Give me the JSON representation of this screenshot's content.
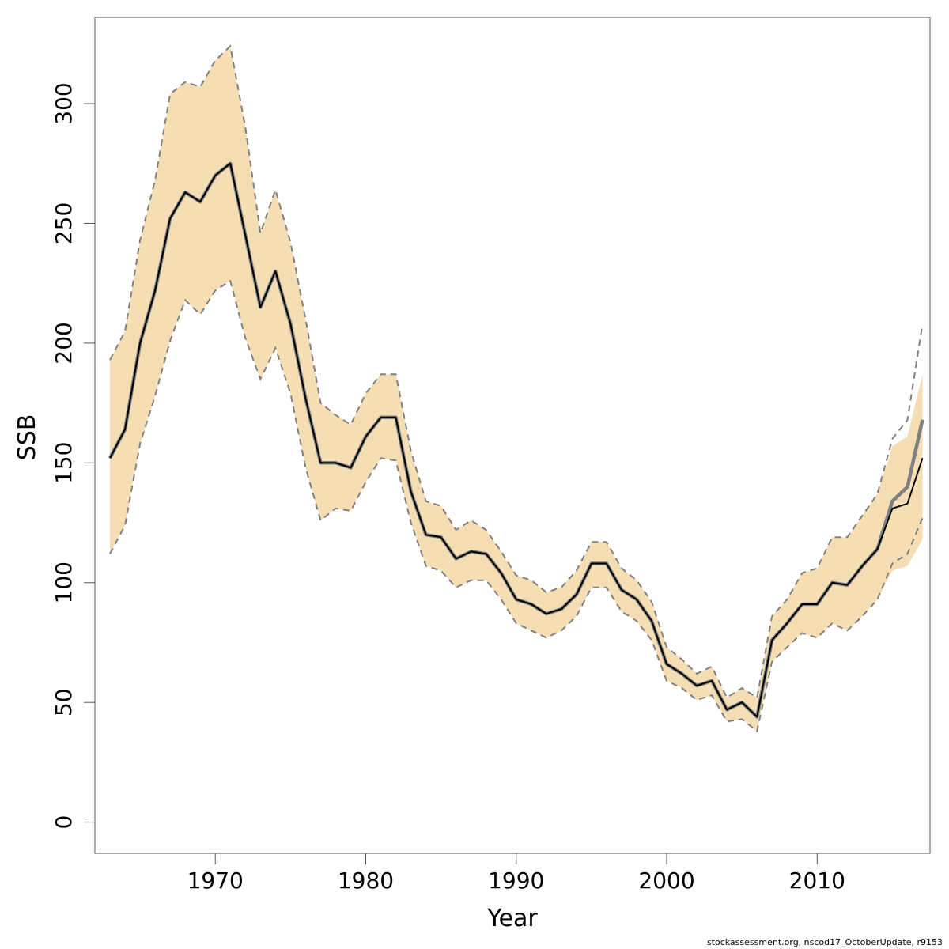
{
  "chart_data": {
    "type": "line",
    "xlabel": "Year",
    "ylabel": "SSB",
    "xlim": [
      1962,
      2017.5
    ],
    "ylim": [
      -13,
      336
    ],
    "x_ticks": [
      1970,
      1980,
      1990,
      2000,
      2010
    ],
    "y_ticks": [
      0,
      50,
      100,
      150,
      200,
      250,
      300
    ],
    "grid": false,
    "legend": "none",
    "colors": {
      "band": "#f5deb3",
      "estimate": "#000000",
      "retro": "#808080",
      "bounds": "#808080",
      "frame": "#555555"
    },
    "x": [
      1963,
      1964,
      1965,
      1966,
      1967,
      1968,
      1969,
      1970,
      1971,
      1972,
      1973,
      1974,
      1975,
      1976,
      1977,
      1978,
      1979,
      1980,
      1981,
      1982,
      1983,
      1984,
      1985,
      1986,
      1987,
      1988,
      1989,
      1990,
      1991,
      1992,
      1993,
      1994,
      1995,
      1996,
      1997,
      1998,
      1999,
      2000,
      2001,
      2002,
      2003,
      2004,
      2005,
      2006,
      2007,
      2008,
      2009,
      2010,
      2011,
      2012,
      2013,
      2014,
      2015,
      2016,
      2017
    ],
    "series": [
      {
        "role": "estimate",
        "values": [
          152,
          164,
          200,
          222,
          252,
          263,
          259,
          270,
          275,
          245,
          215,
          230,
          208,
          177,
          150,
          150,
          148,
          161,
          169,
          169,
          138,
          120,
          119,
          110,
          113,
          112,
          104,
          93,
          91,
          87,
          89,
          95,
          108,
          108,
          97,
          93,
          84,
          66,
          62,
          57,
          59,
          47,
          50,
          44,
          76,
          83,
          91,
          91,
          100,
          99,
          107,
          114,
          131,
          133,
          152
        ]
      },
      {
        "role": "retro",
        "values": [
          152,
          164,
          200,
          222,
          252,
          263,
          259,
          270,
          275,
          245,
          215,
          230,
          208,
          177,
          150,
          150,
          148,
          161,
          169,
          169,
          138,
          120,
          119,
          110,
          113,
          112,
          104,
          93,
          91,
          87,
          89,
          95,
          108,
          108,
          97,
          93,
          84,
          66,
          62,
          57,
          59,
          47,
          50,
          44,
          76,
          83,
          91,
          91,
          100,
          99,
          107,
          114,
          134,
          140,
          168
        ]
      },
      {
        "role": "lower",
        "values": [
          112,
          124,
          158,
          178,
          201,
          218,
          212,
          222,
          226,
          202,
          185,
          198,
          179,
          148,
          126,
          131,
          130,
          142,
          152,
          151,
          125,
          107,
          105,
          98,
          101,
          101,
          93,
          83,
          80,
          77,
          80,
          86,
          98,
          98,
          88,
          84,
          76,
          59,
          56,
          51,
          53,
          42,
          43,
          38,
          67,
          73,
          79,
          77,
          83,
          80,
          86,
          93,
          108,
          112,
          127
        ]
      },
      {
        "role": "upper",
        "values": [
          193,
          205,
          243,
          268,
          304,
          309,
          307,
          318,
          324,
          290,
          246,
          264,
          242,
          210,
          175,
          170,
          166,
          179,
          187,
          187,
          155,
          134,
          132,
          122,
          126,
          122,
          113,
          103,
          101,
          96,
          98,
          105,
          117,
          117,
          106,
          101,
          92,
          73,
          68,
          62,
          65,
          52,
          56,
          52,
          86,
          93,
          104,
          106,
          119,
          119,
          128,
          137,
          160,
          168,
          208
        ]
      },
      {
        "role": "band_upper",
        "values": [
          193,
          205,
          243,
          268,
          304,
          309,
          307,
          318,
          324,
          290,
          246,
          264,
          242,
          210,
          175,
          170,
          166,
          179,
          187,
          187,
          155,
          134,
          132,
          122,
          126,
          122,
          113,
          103,
          101,
          96,
          98,
          105,
          117,
          117,
          106,
          101,
          92,
          73,
          68,
          62,
          65,
          52,
          56,
          52,
          86,
          93,
          104,
          106,
          119,
          119,
          128,
          137,
          157,
          161,
          187
        ]
      },
      {
        "role": "band_lower",
        "values": [
          112,
          124,
          158,
          178,
          201,
          218,
          212,
          222,
          226,
          202,
          185,
          198,
          179,
          148,
          126,
          131,
          130,
          142,
          152,
          151,
          125,
          107,
          105,
          98,
          101,
          101,
          93,
          83,
          80,
          77,
          80,
          86,
          98,
          98,
          88,
          84,
          76,
          59,
          56,
          51,
          53,
          42,
          43,
          38,
          67,
          73,
          79,
          77,
          83,
          80,
          86,
          93,
          105,
          107,
          118
        ]
      }
    ]
  },
  "footer": "stockassessment.org, nscod17_OctoberUpdate, r9153"
}
